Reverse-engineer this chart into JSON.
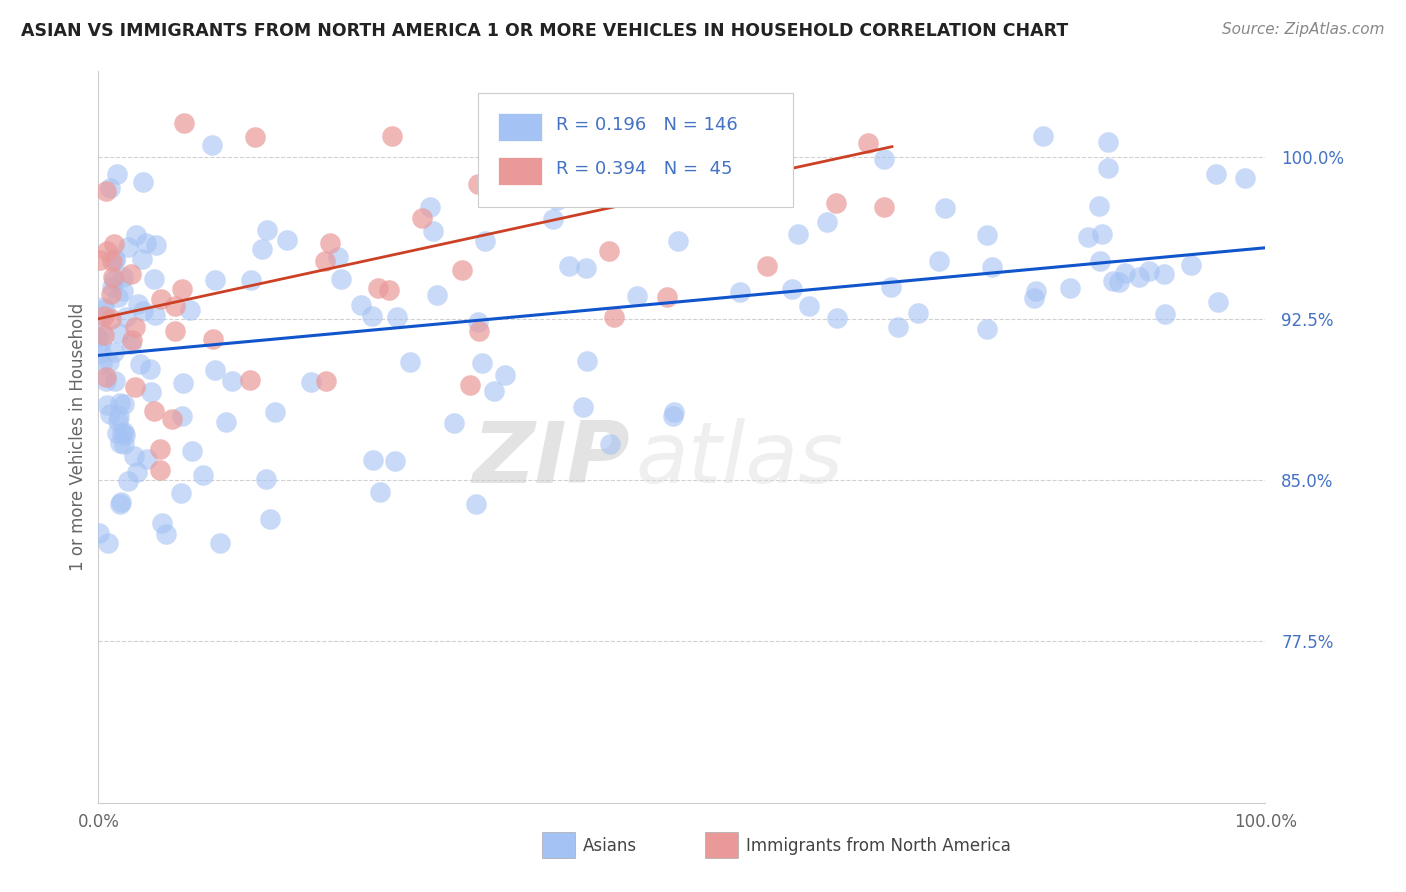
{
  "title": "ASIAN VS IMMIGRANTS FROM NORTH AMERICA 1 OR MORE VEHICLES IN HOUSEHOLD CORRELATION CHART",
  "source": "Source: ZipAtlas.com",
  "ylabel": "1 or more Vehicles in Household",
  "xlim": [
    0.0,
    100.0
  ],
  "ylim": [
    70.0,
    104.0
  ],
  "blue_R": 0.196,
  "blue_N": 146,
  "pink_R": 0.394,
  "pink_N": 45,
  "blue_color": "#a4c2f4",
  "pink_color": "#ea9999",
  "blue_line_color": "#1155cc",
  "pink_line_color": "#cc4125",
  "legend_label_blue": "Asians",
  "legend_label_pink": "Immigrants from North America",
  "ytick_vals": [
    77.5,
    85.0,
    92.5,
    100.0
  ],
  "ytick_labels": [
    "77.5%",
    "85.0%",
    "92.5%",
    "100.0%"
  ],
  "blue_line_y0": 90.8,
  "blue_line_y1": 95.8,
  "pink_line_y0": 92.5,
  "pink_line_y1": 100.5,
  "pink_line_x1": 68.0,
  "watermark_zip": "ZIP",
  "watermark_atlas": "atlas"
}
